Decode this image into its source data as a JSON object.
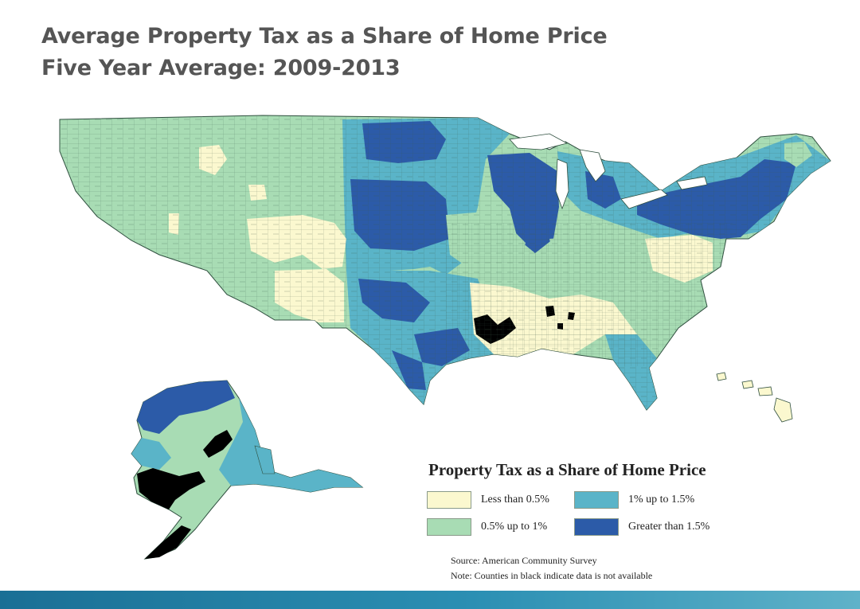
{
  "title": {
    "line1": "Average Property Tax as a Share of Home Price",
    "line2": "Five Year Average: 2009-2013"
  },
  "legend": {
    "title": "Property Tax as a Share of Home Price",
    "categories": [
      {
        "label": "Less than 0.5%",
        "color": "#fbf8cf"
      },
      {
        "label": "1% up to 1.5%",
        "color": "#5ab4c8"
      },
      {
        "label": "0.5% up to 1%",
        "color": "#a8dcb4"
      },
      {
        "label": "Greater than 1.5%",
        "color": "#2c5ba8"
      }
    ],
    "source": "Source: American Community Survey",
    "note": "Note: Counties in black indicate data is not available"
  },
  "colors": {
    "low": "#fbf8cf",
    "mid_low": "#a8dcb4",
    "mid_high": "#5ab4c8",
    "high": "#2c5ba8",
    "no_data": "#000000",
    "footer": "#1f7fa6"
  }
}
